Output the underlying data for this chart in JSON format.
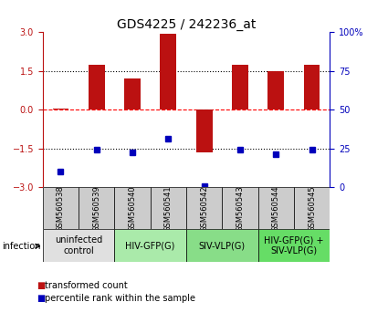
{
  "title": "GDS4225 / 242236_at",
  "samples": [
    "GSM560538",
    "GSM560539",
    "GSM560540",
    "GSM560541",
    "GSM560542",
    "GSM560543",
    "GSM560544",
    "GSM560545"
  ],
  "bar_values": [
    0.05,
    1.75,
    1.2,
    2.95,
    -1.65,
    1.75,
    1.5,
    1.75
  ],
  "dot_values": [
    -2.4,
    -1.55,
    -1.65,
    -1.1,
    -2.95,
    -1.55,
    -1.7,
    -1.55
  ],
  "bar_color": "#bb1111",
  "dot_color": "#0000bb",
  "ylim": [
    -3,
    3
  ],
  "y2lim": [
    0,
    100
  ],
  "yticks": [
    -3,
    -1.5,
    0,
    1.5,
    3
  ],
  "y2ticks": [
    0,
    25,
    50,
    75,
    100
  ],
  "groups": [
    {
      "label": "uninfected\ncontrol",
      "start": 0,
      "end": 2,
      "color": "#e0e0e0"
    },
    {
      "label": "HIV-GFP(G)",
      "start": 2,
      "end": 4,
      "color": "#aaeaaa"
    },
    {
      "label": "SIV-VLP(G)",
      "start": 4,
      "end": 6,
      "color": "#88dd88"
    },
    {
      "label": "HIV-GFP(G) +\nSIV-VLP(G)",
      "start": 6,
      "end": 8,
      "color": "#66dd66"
    }
  ],
  "legend_red_label": "transformed count",
  "legend_blue_label": "percentile rank within the sample",
  "infection_label": "infection",
  "sample_row_color": "#cccccc",
  "title_fontsize": 10,
  "tick_fontsize": 7,
  "sample_fontsize": 6,
  "group_fontsize": 7,
  "legend_fontsize": 7
}
